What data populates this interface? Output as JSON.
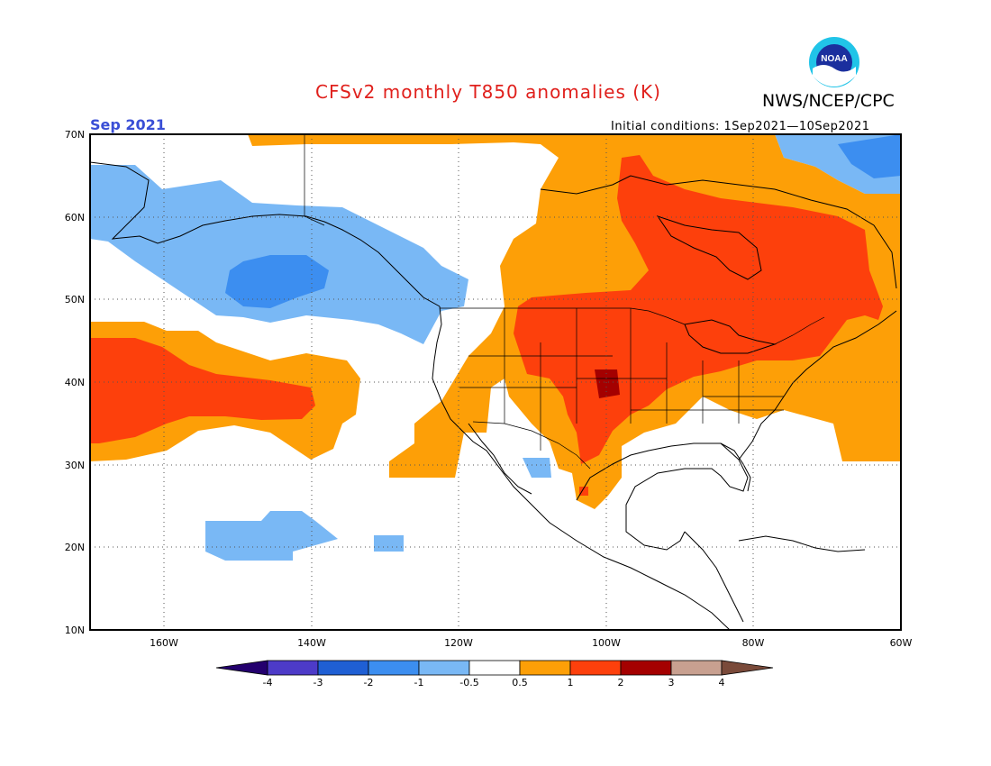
{
  "header": {
    "title": "CFSv2 monthly T850 anomalies (K)",
    "agency": "NWS/NCEP/CPC",
    "valid_month": "Sep 2021",
    "initial_conditions": "Initial conditions: 1Sep2021—10Sep2021",
    "logo_text": "NOAA"
  },
  "map": {
    "lat_labels": [
      "70N",
      "60N",
      "50N",
      "40N",
      "30N",
      "20N",
      "10N"
    ],
    "lon_labels": [
      "160W",
      "140W",
      "120W",
      "100W",
      "80W",
      "60W"
    ],
    "lat_range": [
      10,
      70
    ],
    "lon_range": [
      -170,
      -60
    ],
    "gridlines": "dotted"
  },
  "legend": {
    "labels": [
      "-4",
      "-3",
      "-2",
      "-1",
      "-0.5",
      "0.5",
      "1",
      "2",
      "3",
      "4"
    ],
    "colors": {
      "below_-4": "#24006e",
      "-4_-3": "#4d3bc8",
      "-3_-2": "#1f5fd4",
      "-2_-1": "#3c8ef0",
      "-1_-0.5": "#79b8f5",
      "-0.5_0.5": "#ffffff",
      "0.5_1": "#fd9f07",
      "1_2": "#fd400c",
      "2_3": "#a40000",
      "3_4": "#c8a090",
      "above_4": "#7a4a3a"
    }
  }
}
